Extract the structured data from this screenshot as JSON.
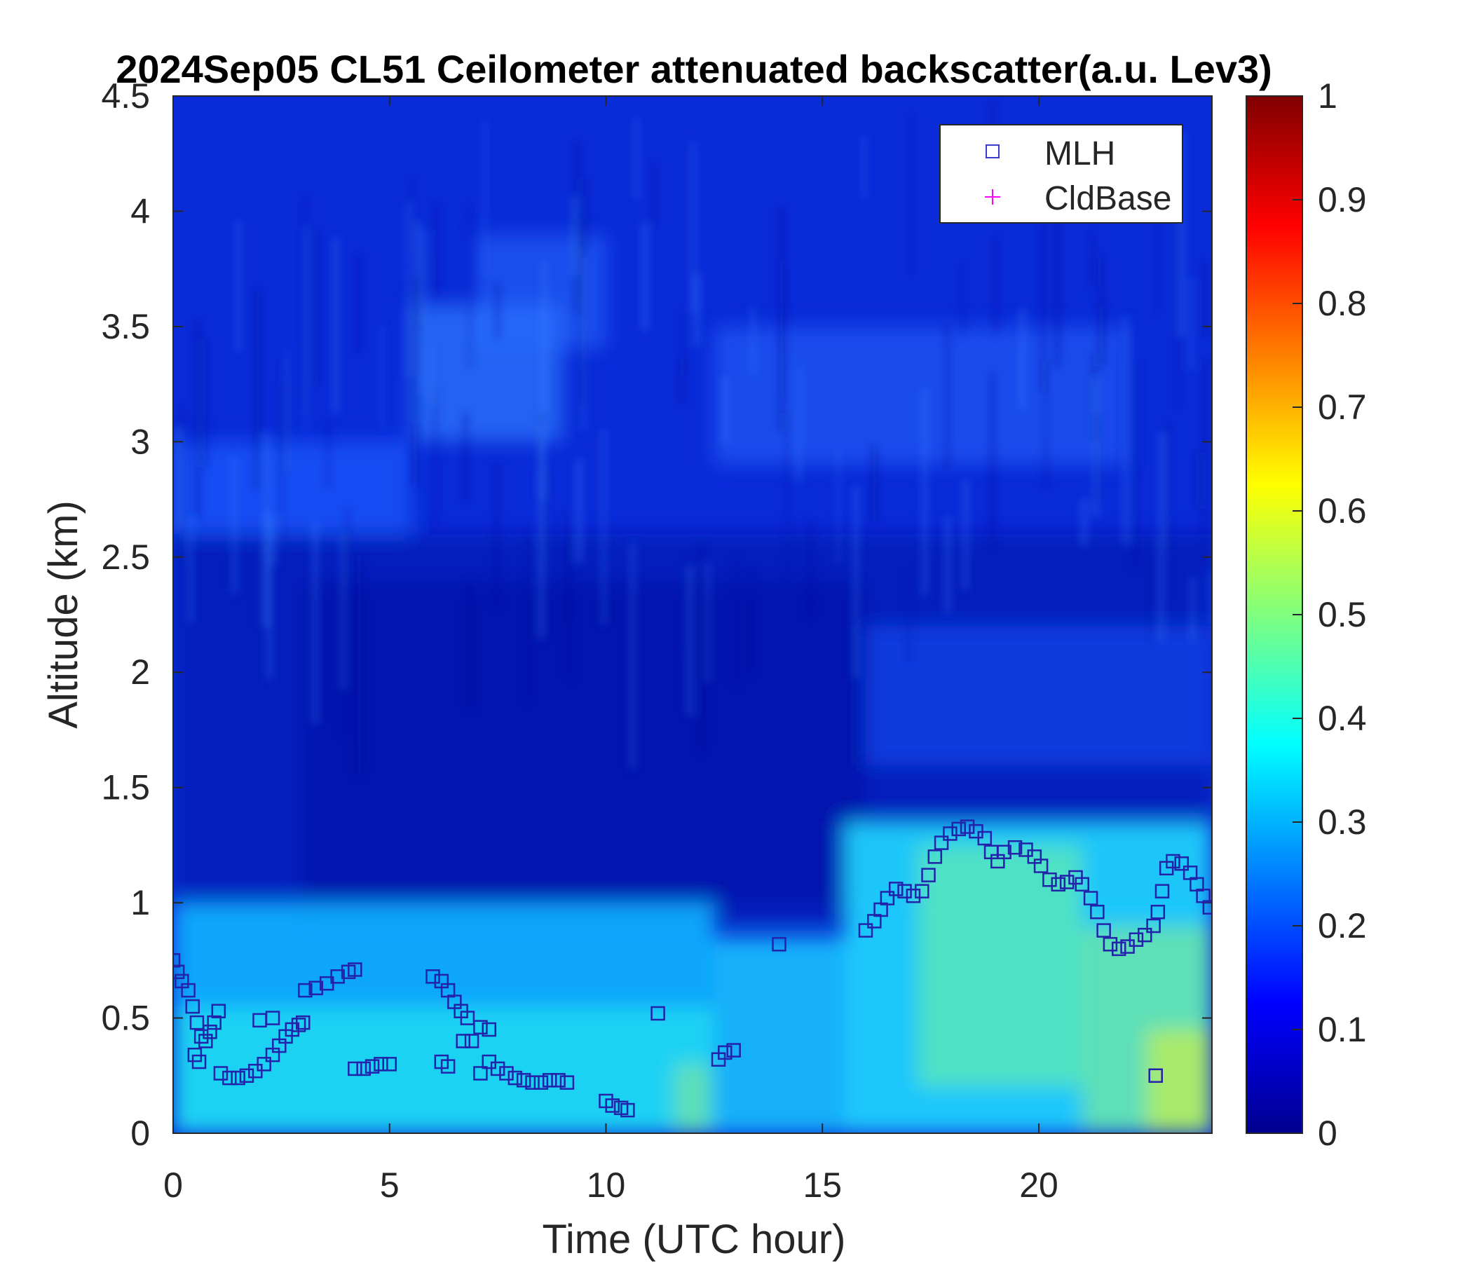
{
  "chart_data": {
    "type": "heatmap",
    "title": "2024Sep05 CL51 Ceilometer attenuated backscatter(a.u. Lev3)",
    "xlabel": "Time (UTC hour)",
    "ylabel": "Altitude (km)",
    "xlim": [
      0,
      24
    ],
    "ylim": [
      0,
      4.5
    ],
    "xticks": [
      0,
      5,
      10,
      15,
      20
    ],
    "yticks": [
      0,
      0.5,
      1,
      1.5,
      2,
      2.5,
      3,
      3.5,
      4,
      4.5
    ],
    "xtick_labels": [
      "0",
      "5",
      "10",
      "15",
      "20"
    ],
    "ytick_labels": [
      "0",
      "0.5",
      "1",
      "1.5",
      "2",
      "2.5",
      "3",
      "3.5",
      "4",
      "4.5"
    ],
    "colorbar": {
      "colormap": "jet",
      "range": [
        0,
        1
      ],
      "ticks": [
        0,
        0.1,
        0.2,
        0.3,
        0.4,
        0.5,
        0.6,
        0.7,
        0.8,
        0.9,
        1
      ],
      "tick_labels": [
        "0",
        "0.1",
        "0.2",
        "0.3",
        "0.4",
        "0.5",
        "0.6",
        "0.7",
        "0.8",
        "0.9",
        "1"
      ]
    },
    "grid": false,
    "legend": {
      "placement": "top-right",
      "entries": [
        {
          "name": "MLH",
          "marker": "square",
          "color": "#3a3acc"
        },
        {
          "name": "CldBase",
          "marker": "plus",
          "color": "#ff00ff"
        }
      ]
    },
    "series": [
      {
        "name": "MLH",
        "marker": "square",
        "color": "#2222aa",
        "points": [
          [
            0.0,
            0.75
          ],
          [
            0.1,
            0.7
          ],
          [
            0.2,
            0.66
          ],
          [
            0.35,
            0.62
          ],
          [
            0.45,
            0.55
          ],
          [
            0.55,
            0.48
          ],
          [
            0.65,
            0.42
          ],
          [
            0.75,
            0.4
          ],
          [
            0.85,
            0.44
          ],
          [
            0.95,
            0.48
          ],
          [
            1.05,
            0.53
          ],
          [
            0.5,
            0.34
          ],
          [
            0.6,
            0.31
          ],
          [
            1.1,
            0.26
          ],
          [
            1.3,
            0.24
          ],
          [
            1.5,
            0.24
          ],
          [
            1.7,
            0.25
          ],
          [
            1.9,
            0.27
          ],
          [
            2.0,
            0.49
          ],
          [
            2.3,
            0.5
          ],
          [
            2.1,
            0.3
          ],
          [
            2.3,
            0.34
          ],
          [
            2.45,
            0.38
          ],
          [
            2.6,
            0.42
          ],
          [
            2.75,
            0.45
          ],
          [
            2.9,
            0.47
          ],
          [
            3.0,
            0.48
          ],
          [
            3.05,
            0.62
          ],
          [
            3.3,
            0.63
          ],
          [
            3.55,
            0.65
          ],
          [
            3.8,
            0.68
          ],
          [
            4.05,
            0.7
          ],
          [
            4.2,
            0.71
          ],
          [
            4.2,
            0.28
          ],
          [
            4.4,
            0.28
          ],
          [
            4.6,
            0.29
          ],
          [
            4.8,
            0.3
          ],
          [
            5.0,
            0.3
          ],
          [
            6.0,
            0.68
          ],
          [
            6.2,
            0.66
          ],
          [
            6.35,
            0.62
          ],
          [
            6.5,
            0.57
          ],
          [
            6.65,
            0.53
          ],
          [
            6.8,
            0.5
          ],
          [
            6.2,
            0.31
          ],
          [
            6.35,
            0.29
          ],
          [
            6.7,
            0.4
          ],
          [
            6.9,
            0.4
          ],
          [
            7.1,
            0.46
          ],
          [
            7.3,
            0.45
          ],
          [
            7.1,
            0.26
          ],
          [
            7.3,
            0.31
          ],
          [
            7.5,
            0.28
          ],
          [
            7.7,
            0.26
          ],
          [
            7.9,
            0.24
          ],
          [
            8.1,
            0.23
          ],
          [
            8.3,
            0.22
          ],
          [
            8.5,
            0.22
          ],
          [
            8.7,
            0.23
          ],
          [
            8.9,
            0.23
          ],
          [
            9.1,
            0.22
          ],
          [
            10.0,
            0.14
          ],
          [
            10.15,
            0.12
          ],
          [
            10.35,
            0.11
          ],
          [
            10.5,
            0.1
          ],
          [
            11.2,
            0.52
          ],
          [
            12.6,
            0.32
          ],
          [
            12.75,
            0.35
          ],
          [
            12.95,
            0.36
          ],
          [
            14.0,
            0.82
          ],
          [
            16.0,
            0.88
          ],
          [
            16.2,
            0.92
          ],
          [
            16.35,
            0.97
          ],
          [
            16.5,
            1.02
          ],
          [
            16.7,
            1.06
          ],
          [
            16.9,
            1.05
          ],
          [
            17.1,
            1.03
          ],
          [
            17.3,
            1.05
          ],
          [
            17.45,
            1.12
          ],
          [
            17.6,
            1.2
          ],
          [
            17.75,
            1.26
          ],
          [
            17.95,
            1.3
          ],
          [
            18.15,
            1.32
          ],
          [
            18.35,
            1.33
          ],
          [
            18.55,
            1.31
          ],
          [
            18.75,
            1.28
          ],
          [
            18.9,
            1.22
          ],
          [
            19.05,
            1.18
          ],
          [
            19.2,
            1.22
          ],
          [
            19.45,
            1.24
          ],
          [
            19.7,
            1.23
          ],
          [
            19.9,
            1.2
          ],
          [
            20.05,
            1.16
          ],
          [
            20.25,
            1.1
          ],
          [
            20.45,
            1.08
          ],
          [
            20.65,
            1.09
          ],
          [
            20.85,
            1.11
          ],
          [
            21.0,
            1.08
          ],
          [
            21.2,
            1.02
          ],
          [
            21.35,
            0.96
          ],
          [
            21.5,
            0.88
          ],
          [
            21.65,
            0.82
          ],
          [
            21.85,
            0.8
          ],
          [
            22.05,
            0.81
          ],
          [
            22.25,
            0.84
          ],
          [
            22.45,
            0.86
          ],
          [
            22.65,
            0.9
          ],
          [
            22.75,
            0.96
          ],
          [
            22.85,
            1.05
          ],
          [
            22.95,
            1.15
          ],
          [
            23.1,
            1.18
          ],
          [
            23.3,
            1.17
          ],
          [
            23.5,
            1.13
          ],
          [
            23.65,
            1.08
          ],
          [
            23.8,
            1.03
          ],
          [
            23.95,
            0.98
          ],
          [
            22.7,
            0.25
          ]
        ]
      },
      {
        "name": "CldBase",
        "marker": "plus",
        "color": "#ff00ff",
        "points": []
      }
    ]
  }
}
